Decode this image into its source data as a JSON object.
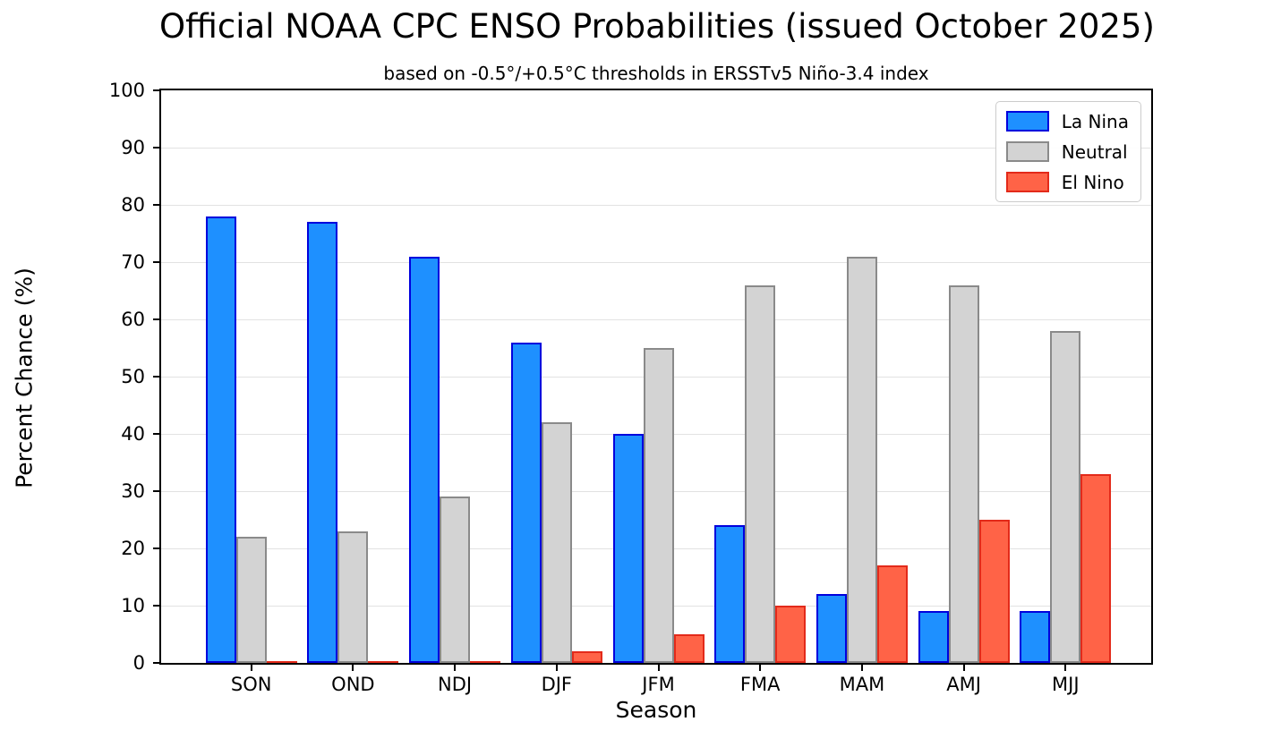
{
  "chart_data": {
    "type": "bar",
    "title": "Official NOAA CPC ENSO Probabilities (issued October 2025)",
    "subtitle": "based on -0.5°/+0.5°C thresholds in ERSSTv5 Niño-3.4 index",
    "xlabel": "Season",
    "ylabel": "Percent Chance (%)",
    "categories": [
      "SON",
      "OND",
      "NDJ",
      "DJF",
      "JFM",
      "FMA",
      "MAM",
      "AMJ",
      "MJJ"
    ],
    "series": [
      {
        "name": "La Nina",
        "fill": "#1E90FF",
        "edge": "#0000DD",
        "values": [
          78,
          77,
          71,
          56,
          40,
          24,
          12,
          9,
          9
        ]
      },
      {
        "name": "Neutral",
        "fill": "#D3D3D3",
        "edge": "#8A8A8A",
        "values": [
          22,
          23,
          29,
          42,
          55,
          66,
          71,
          66,
          58
        ]
      },
      {
        "name": "El Nino",
        "fill": "#FF6347",
        "edge": "#E32A1A",
        "values": [
          0,
          0,
          0,
          2,
          5,
          10,
          17,
          25,
          33
        ]
      }
    ],
    "ylim": [
      0,
      100
    ],
    "ytick_step": 10,
    "grid": true,
    "grid_color": "#e2e2e2",
    "legend_position": "upper right"
  }
}
